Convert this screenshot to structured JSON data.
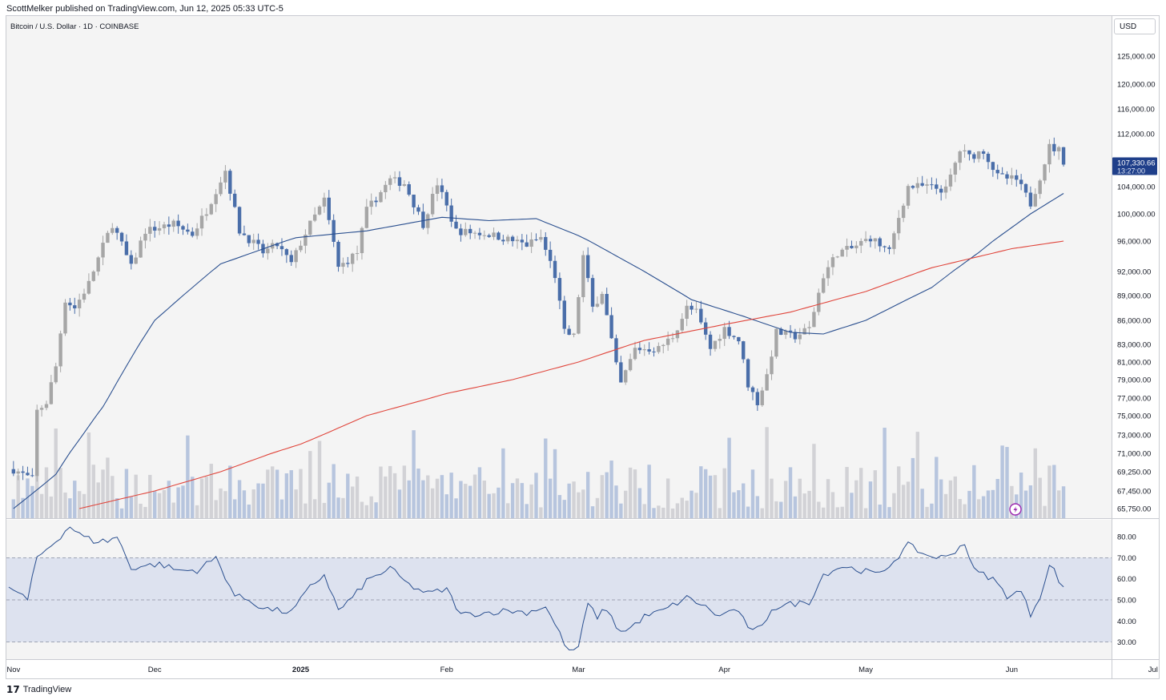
{
  "header": {
    "published": "ScottMelker published on TradingView.com, Jun 12, 2025 05:33 UTC-5"
  },
  "symbol": {
    "title": "Bitcoin / U.S. Dollar · 1D · COINBASE"
  },
  "currency": "USD",
  "footer": {
    "brand": "TradingView"
  },
  "colors": {
    "up_candle": "#a6a6a6",
    "down_candle": "#4a6ea9",
    "ma_fast": "#2a4f8f",
    "ma_slow": "#e0453b",
    "rsi_line": "#2a4f8f",
    "rsi_band": "#dde2ef",
    "last_price_bg": "#1f3f8a"
  },
  "chart_data": [
    {
      "type": "candlestick",
      "title": "Bitcoin / U.S. Dollar · 1D · COINBASE",
      "price_axis_ticks": [
        125000,
        120000,
        116000,
        112000,
        104000,
        100000,
        96000,
        92000,
        89000,
        86000,
        83000,
        81000,
        79000,
        77000,
        75000,
        73000,
        71000,
        69250,
        67450,
        65750
      ],
      "price_axis_labels": [
        "125,000.00",
        "120,000.00",
        "116,000.00",
        "112,000.00",
        "104,000.00",
        "100,000.00",
        "96,000.00",
        "92,000.00",
        "89,000.00",
        "86,000.00",
        "83,000.00",
        "81,000.00",
        "79,000.00",
        "77,000.00",
        "75,000.00",
        "73,000.00",
        "71,000.00",
        "69,250.00",
        "67,450.00",
        "65,750.00"
      ],
      "time_axis_labels": [
        "Nov",
        "Dec",
        "2025",
        "Feb",
        "Mar",
        "Apr",
        "May",
        "Jun",
        "Jul"
      ],
      "last_price": "107,330.66",
      "countdown": "13:27:00",
      "close_anchors": [
        [
          "2024-11-01",
          69500
        ],
        [
          "2024-11-05",
          68500
        ],
        [
          "2024-11-06",
          75500
        ],
        [
          "2024-11-08",
          76500
        ],
        [
          "2024-11-10",
          80500
        ],
        [
          "2024-11-12",
          88500
        ],
        [
          "2024-11-14",
          87500
        ],
        [
          "2024-11-17",
          90500
        ],
        [
          "2024-11-22",
          98500
        ],
        [
          "2024-11-26",
          92500
        ],
        [
          "2024-11-29",
          97500
        ],
        [
          "2024-12-05",
          98500
        ],
        [
          "2024-12-09",
          97000
        ],
        [
          "2024-12-12",
          100500
        ],
        [
          "2024-12-16",
          106500
        ],
        [
          "2024-12-19",
          97500
        ],
        [
          "2024-12-24",
          94500
        ],
        [
          "2024-12-27",
          95500
        ],
        [
          "2024-12-30",
          93000
        ],
        [
          "2025-01-03",
          98500
        ],
        [
          "2025-01-06",
          102000
        ],
        [
          "2025-01-09",
          92500
        ],
        [
          "2025-01-13",
          94500
        ],
        [
          "2025-01-15",
          100500
        ],
        [
          "2025-01-20",
          105000
        ],
        [
          "2025-01-23",
          104500
        ],
        [
          "2025-01-27",
          98500
        ],
        [
          "2025-01-30",
          104500
        ],
        [
          "2025-02-03",
          97500
        ],
        [
          "2025-02-10",
          97000
        ],
        [
          "2025-02-18",
          95500
        ],
        [
          "2025-02-21",
          96500
        ],
        [
          "2025-02-24",
          91500
        ],
        [
          "2025-02-26",
          84500
        ],
        [
          "2025-02-28",
          84000
        ],
        [
          "2025-03-02",
          94000
        ],
        [
          "2025-03-04",
          87500
        ],
        [
          "2025-03-06",
          89500
        ],
        [
          "2025-03-09",
          80500
        ],
        [
          "2025-03-10",
          78500
        ],
        [
          "2025-03-13",
          82500
        ],
        [
          "2025-03-18",
          82500
        ],
        [
          "2025-03-21",
          84000
        ],
        [
          "2025-03-24",
          87500
        ],
        [
          "2025-03-26",
          87000
        ],
        [
          "2025-03-29",
          82500
        ],
        [
          "2025-04-01",
          85000
        ],
        [
          "2025-04-04",
          83500
        ],
        [
          "2025-04-06",
          78500
        ],
        [
          "2025-04-08",
          76500
        ],
        [
          "2025-04-10",
          79500
        ],
        [
          "2025-04-12",
          84500
        ],
        [
          "2025-04-16",
          84000
        ],
        [
          "2025-04-19",
          85000
        ],
        [
          "2025-04-22",
          91500
        ],
        [
          "2025-04-25",
          94500
        ],
        [
          "2025-04-28",
          95000
        ],
        [
          "2025-05-02",
          96500
        ],
        [
          "2025-05-06",
          94500
        ],
        [
          "2025-05-08",
          99500
        ],
        [
          "2025-05-10",
          104000
        ],
        [
          "2025-05-14",
          104000
        ],
        [
          "2025-05-18",
          103500
        ],
        [
          "2025-05-21",
          109500
        ],
        [
          "2025-05-23",
          108500
        ],
        [
          "2025-05-26",
          109500
        ],
        [
          "2025-05-29",
          105500
        ],
        [
          "2025-06-02",
          105000
        ],
        [
          "2025-06-05",
          101500
        ],
        [
          "2025-06-07",
          105500
        ],
        [
          "2025-06-09",
          110000
        ],
        [
          "2025-06-11",
          109500
        ],
        [
          "2025-06-12",
          107330.66
        ]
      ],
      "ma_fast_anchors": [
        [
          "2024-11-01",
          65750
        ],
        [
          "2024-11-10",
          69000
        ],
        [
          "2024-11-20",
          76000
        ],
        [
          "2024-12-01",
          86000
        ],
        [
          "2024-12-15",
          93000
        ],
        [
          "2024-12-31",
          96500
        ],
        [
          "2025-01-15",
          97500
        ],
        [
          "2025-01-31",
          99500
        ],
        [
          "2025-02-10",
          99000
        ],
        [
          "2025-02-20",
          99300
        ],
        [
          "2025-03-01",
          96800
        ],
        [
          "2025-03-15",
          92000
        ],
        [
          "2025-03-25",
          88500
        ],
        [
          "2025-04-05",
          86500
        ],
        [
          "2025-04-15",
          84500
        ],
        [
          "2025-04-22",
          84300
        ],
        [
          "2025-05-01",
          86000
        ],
        [
          "2025-05-15",
          90000
        ],
        [
          "2025-05-25",
          94500
        ],
        [
          "2025-06-05",
          100000
        ],
        [
          "2025-06-12",
          103000
        ]
      ],
      "ma_slow_anchors": [
        [
          "2024-11-15",
          65750
        ],
        [
          "2024-12-01",
          67450
        ],
        [
          "2024-12-15",
          69250
        ],
        [
          "2025-01-01",
          72000
        ],
        [
          "2025-01-15",
          75000
        ],
        [
          "2025-02-01",
          77500
        ],
        [
          "2025-02-15",
          79000
        ],
        [
          "2025-03-01",
          81000
        ],
        [
          "2025-03-15",
          83500
        ],
        [
          "2025-04-01",
          85500
        ],
        [
          "2025-04-15",
          87000
        ],
        [
          "2025-05-01",
          89500
        ],
        [
          "2025-05-15",
          92500
        ],
        [
          "2025-06-01",
          95000
        ],
        [
          "2025-06-12",
          96000
        ]
      ]
    },
    {
      "type": "line",
      "title": "",
      "rsi_axis_ticks": [
        80,
        70,
        60,
        50,
        40,
        30
      ],
      "rsi_axis_labels": [
        "80.00",
        "70.00",
        "60.00",
        "50.00",
        "40.00",
        "30.00"
      ],
      "band": [
        30,
        70
      ],
      "midline": 50,
      "rsi_anchors": [
        [
          "2024-11-01",
          55
        ],
        [
          "2024-11-04",
          50
        ],
        [
          "2024-11-06",
          70
        ],
        [
          "2024-11-10",
          78
        ],
        [
          "2024-11-13",
          85
        ],
        [
          "2024-11-15",
          81
        ],
        [
          "2024-11-18",
          78
        ],
        [
          "2024-11-21",
          78
        ],
        [
          "2024-11-23",
          80
        ],
        [
          "2024-11-26",
          65
        ],
        [
          "2024-11-28",
          66
        ],
        [
          "2024-12-02",
          67
        ],
        [
          "2024-12-06",
          64
        ],
        [
          "2024-12-10",
          64
        ],
        [
          "2024-12-14",
          70
        ],
        [
          "2024-12-18",
          52
        ],
        [
          "2024-12-21",
          50
        ],
        [
          "2024-12-24",
          46
        ],
        [
          "2024-12-27",
          45
        ],
        [
          "2024-12-30",
          44
        ],
        [
          "2025-01-03",
          56
        ],
        [
          "2025-01-06",
          62
        ],
        [
          "2025-01-09",
          45
        ],
        [
          "2025-01-12",
          51
        ],
        [
          "2025-01-15",
          59
        ],
        [
          "2025-01-20",
          65
        ],
        [
          "2025-01-24",
          57
        ],
        [
          "2025-01-28",
          53
        ],
        [
          "2025-02-01",
          55
        ],
        [
          "2025-02-04",
          43
        ],
        [
          "2025-02-10",
          44
        ],
        [
          "2025-02-14",
          45
        ],
        [
          "2025-02-18",
          44
        ],
        [
          "2025-02-22",
          47
        ],
        [
          "2025-02-25",
          34
        ],
        [
          "2025-02-27",
          25
        ],
        [
          "2025-03-01",
          28
        ],
        [
          "2025-03-03",
          48
        ],
        [
          "2025-03-05",
          42
        ],
        [
          "2025-03-07",
          46
        ],
        [
          "2025-03-09",
          37
        ],
        [
          "2025-03-11",
          35
        ],
        [
          "2025-03-15",
          42
        ],
        [
          "2025-03-19",
          45
        ],
        [
          "2025-03-24",
          51
        ],
        [
          "2025-03-27",
          48
        ],
        [
          "2025-03-31",
          42
        ],
        [
          "2025-04-03",
          46
        ],
        [
          "2025-04-07",
          35
        ],
        [
          "2025-04-09",
          37
        ],
        [
          "2025-04-11",
          46
        ],
        [
          "2025-04-15",
          48
        ],
        [
          "2025-04-19",
          49
        ],
        [
          "2025-04-22",
          62
        ],
        [
          "2025-04-26",
          66
        ],
        [
          "2025-04-30",
          64
        ],
        [
          "2025-05-04",
          62
        ],
        [
          "2025-05-08",
          71
        ],
        [
          "2025-05-10",
          76
        ],
        [
          "2025-05-14",
          71
        ],
        [
          "2025-05-18",
          70
        ],
        [
          "2025-05-22",
          77
        ],
        [
          "2025-05-24",
          64
        ],
        [
          "2025-05-28",
          60
        ],
        [
          "2025-05-31",
          52
        ],
        [
          "2025-06-03",
          54
        ],
        [
          "2025-06-05",
          43
        ],
        [
          "2025-06-07",
          52
        ],
        [
          "2025-06-09",
          66
        ],
        [
          "2025-06-10",
          64
        ],
        [
          "2025-06-12",
          55
        ]
      ]
    }
  ]
}
